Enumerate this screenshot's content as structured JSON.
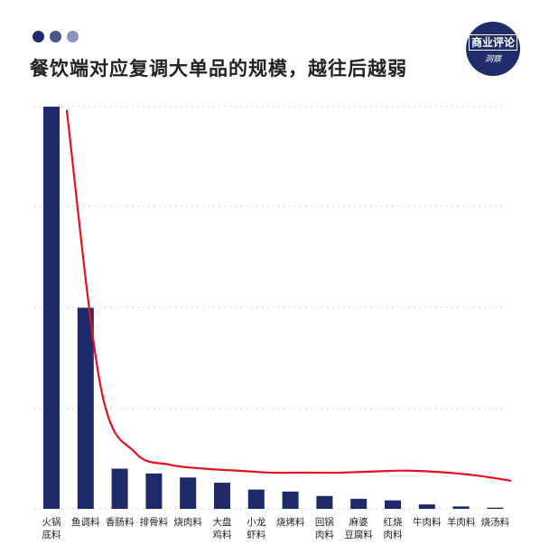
{
  "title": "餐饮端对应复调大单品的规模，越往后越弱",
  "brand": {
    "name": "商业评论",
    "sub": "洞察"
  },
  "colors": {
    "bar": "#1f2a6b",
    "curve": "#e8101e",
    "grid": "#c8c8c8",
    "dot1": "#1f2a6b",
    "dot2": "#4a5590",
    "dot3": "#8a92bd"
  },
  "chart_data": {
    "type": "bar",
    "categories": [
      [
        "火锅",
        "底料"
      ],
      [
        "鱼调料"
      ],
      [
        "香肠料"
      ],
      [
        "排骨料"
      ],
      [
        "烧肉料"
      ],
      [
        "大盘",
        "鸡料"
      ],
      [
        "小龙",
        "虾料"
      ],
      [
        "烧烤料"
      ],
      [
        "回锅",
        "肉料"
      ],
      [
        "麻婆",
        "豆腐料"
      ],
      [
        "红烧",
        "肉料"
      ],
      [
        "牛肉料"
      ],
      [
        "羊肉料"
      ],
      [
        "烧汤料"
      ]
    ],
    "values": [
      100,
      50,
      10,
      8.8,
      7.8,
      6.5,
      4.8,
      4.3,
      3.2,
      2.5,
      2.1,
      1.1,
      0.6,
      0.3
    ],
    "trend": [
      99,
      30,
      14,
      11,
      10,
      9.5,
      9,
      9,
      9,
      9.3,
      9.5,
      9.1,
      8.3,
      7
    ],
    "ylim": [
      0,
      100
    ],
    "grid": true,
    "title": "餐饮端对应复调大单品的规模，越往后越弱",
    "xlabel": "",
    "ylabel": ""
  }
}
